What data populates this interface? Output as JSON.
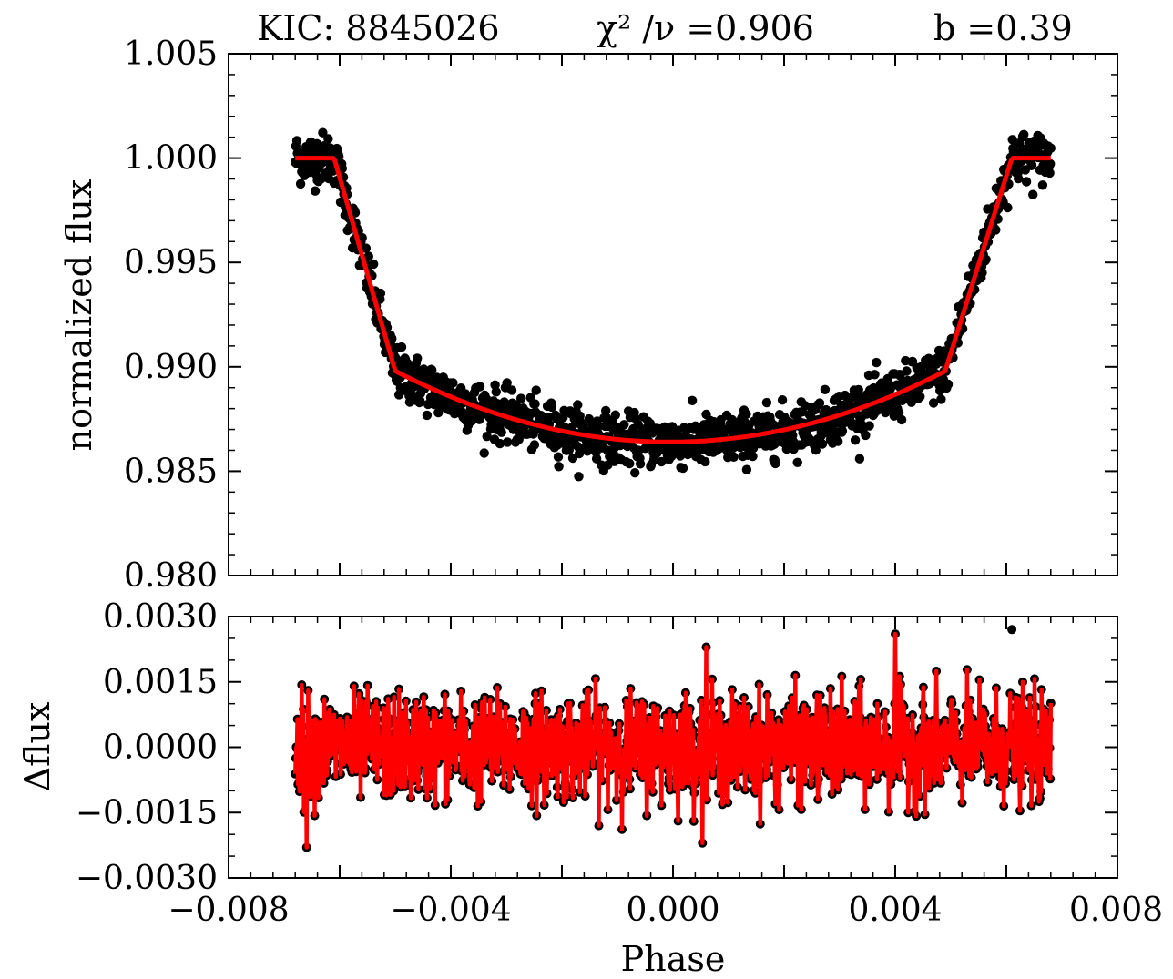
{
  "title": {
    "kic": "KIC:  8845026",
    "chi2": "χ² /ν =0.906",
    "b": "b =0.39"
  },
  "colors": {
    "data_points": "#000000",
    "model": "#ff0000",
    "residual_line": "#ff0000",
    "axes": "#000000",
    "background": "#ffffff"
  },
  "chart_data": [
    {
      "type": "scatter",
      "panel": "light-curve",
      "xlabel": "",
      "ylabel": "normalized  flux",
      "xlim": [
        -0.008,
        0.008
      ],
      "ylim": [
        0.98,
        1.005
      ],
      "yticks": [
        0.98,
        0.985,
        0.99,
        0.995,
        1.0,
        1.005
      ],
      "ytick_labels": [
        "0.980",
        "0.985",
        "0.990",
        "0.995",
        "1.000",
        "1.005"
      ],
      "phase_range": [
        -0.0068,
        0.0068
      ],
      "transit": {
        "ingress_start": -0.0061,
        "full_start": -0.005,
        "full_end": 0.0049,
        "egress_end": 0.0061,
        "out_of_transit_flux": 1.0,
        "contact_flux": 0.9898,
        "min_flux": 0.9864,
        "scatter": 0.0006
      },
      "grid": false
    },
    {
      "type": "line",
      "panel": "residuals",
      "xlabel": "Phase",
      "ylabel": "Δflux",
      "xlim": [
        -0.008,
        0.008
      ],
      "ylim": [
        -0.003,
        0.003
      ],
      "xticks": [
        -0.008,
        -0.004,
        0.0,
        0.004,
        0.008
      ],
      "xtick_labels": [
        "−0.008",
        "−0.004",
        "0.000",
        "0.004",
        "0.008"
      ],
      "yticks": [
        -0.003,
        -0.0015,
        0.0,
        0.0015,
        0.003
      ],
      "ytick_labels": [
        "−0.0030",
        "−0.0015",
        "0.0000",
        "0.0015",
        "0.0030"
      ],
      "residual_scatter": 0.0006,
      "outliers": [
        {
          "x": 0.0061,
          "y": 0.0027
        },
        {
          "x": 0.004,
          "y": 0.0026
        },
        {
          "x": 0.0006,
          "y": 0.0023
        },
        {
          "x": -0.0066,
          "y": -0.0023
        }
      ],
      "grid": false
    }
  ]
}
